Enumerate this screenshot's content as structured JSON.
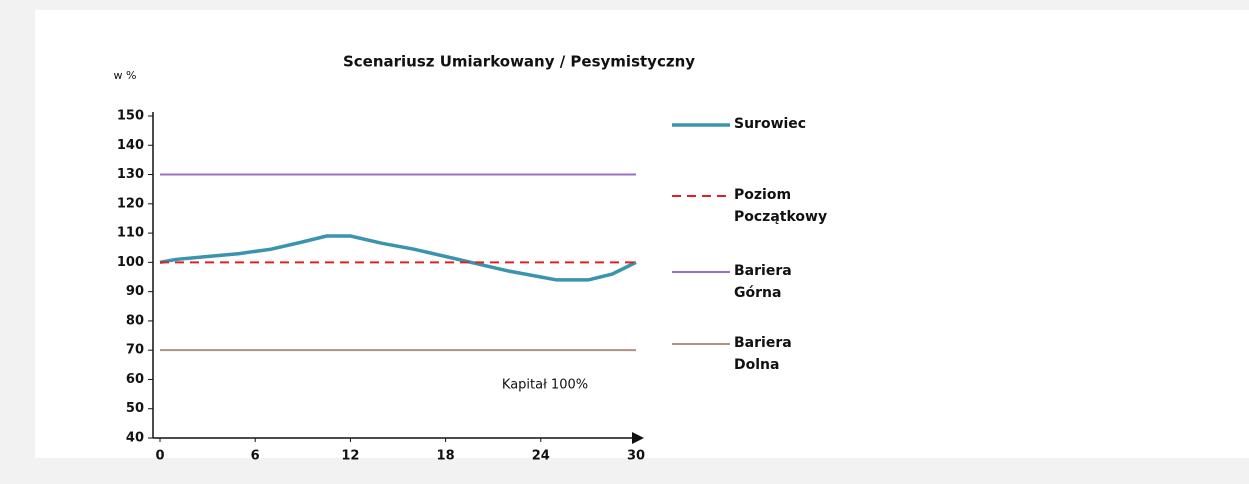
{
  "chart_data": {
    "type": "line",
    "title": "Scenariusz Umiarkowany / Pesymistyczny",
    "y_label": "w %",
    "annotation": "Kapitał 100%",
    "xlim": [
      0,
      30
    ],
    "ylim": [
      40,
      150
    ],
    "xticks": [
      0,
      6,
      12,
      18,
      24,
      30
    ],
    "yticks": [
      40,
      50,
      60,
      70,
      80,
      90,
      100,
      110,
      120,
      130,
      140,
      150
    ],
    "grid": false,
    "series": [
      {
        "name": "Surowiec",
        "color": "#3a94ae",
        "dash": false,
        "x": [
          0,
          1,
          3,
          5,
          7,
          9,
          10.5,
          12,
          14,
          16,
          18,
          20,
          22,
          24,
          25,
          27,
          28.5,
          30
        ],
        "values": [
          100,
          101,
          102,
          103,
          104.5,
          107,
          109,
          109,
          106.5,
          104.5,
          102,
          99.5,
          97,
          95,
          94,
          94,
          96,
          100
        ]
      },
      {
        "name": "Poziom Początkowy",
        "color": "#e02020",
        "dash": true,
        "x": [
          0,
          30
        ],
        "values": [
          100,
          100
        ]
      },
      {
        "name": "Bariera Górna",
        "color": "#9b6fc6",
        "dash": false,
        "x": [
          0,
          30
        ],
        "values": [
          130,
          130
        ]
      },
      {
        "name": "Bariera Dolna",
        "color": "#b09080",
        "dash": false,
        "x": [
          0,
          30
        ],
        "values": [
          70,
          70
        ]
      }
    ]
  }
}
